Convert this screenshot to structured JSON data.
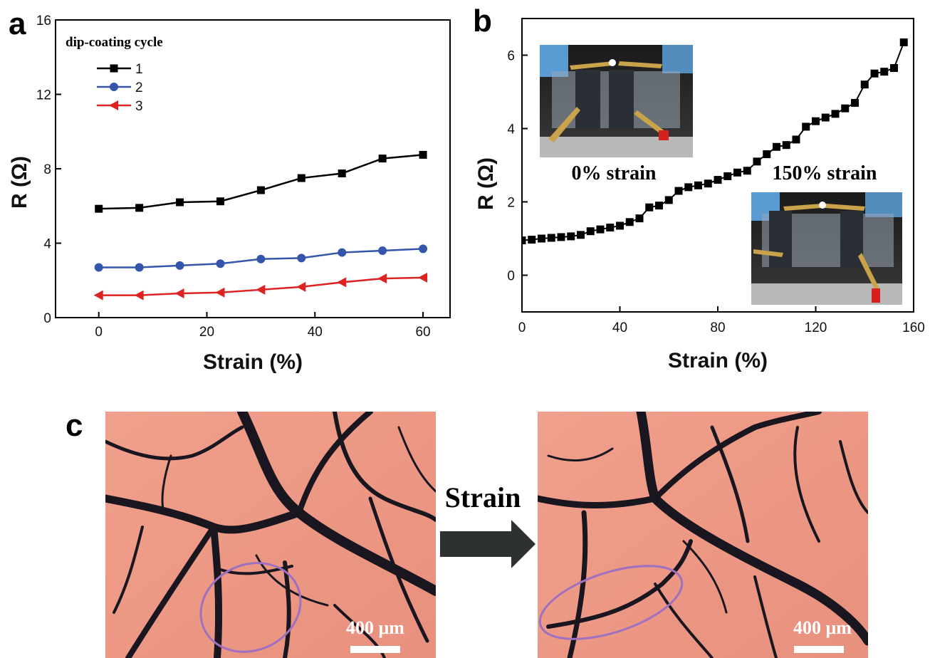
{
  "panels": {
    "a": "a",
    "b": "b",
    "c": "c"
  },
  "chart_data": [
    {
      "panel": "a",
      "type": "line",
      "xlabel": "Strain (%)",
      "ylabel": "R (Ω)",
      "xlim": [
        -8,
        65
      ],
      "ylim": [
        0,
        16
      ],
      "xticks": [
        0,
        20,
        40,
        60
      ],
      "yticks": [
        0,
        4,
        8,
        12,
        16
      ],
      "legend_title": "dip-coating cycle",
      "legend_position": "top-left",
      "x": [
        0,
        7.5,
        15,
        22.5,
        30,
        37.5,
        45,
        52.5,
        60
      ],
      "series": [
        {
          "name": "1",
          "color": "#000000",
          "marker": "square",
          "values": [
            5.85,
            5.9,
            6.2,
            6.25,
            6.85,
            7.5,
            7.75,
            8.55,
            8.75
          ]
        },
        {
          "name": "2",
          "color": "#3355aa",
          "marker": "circle",
          "values": [
            2.7,
            2.7,
            2.8,
            2.9,
            3.15,
            3.2,
            3.5,
            3.6,
            3.7
          ]
        },
        {
          "name": "3",
          "color": "#dd2222",
          "marker": "triangle-left",
          "values": [
            1.2,
            1.2,
            1.3,
            1.35,
            1.5,
            1.65,
            1.9,
            2.1,
            2.15
          ]
        }
      ]
    },
    {
      "panel": "b",
      "type": "line",
      "xlabel": "Strain (%)",
      "ylabel": "R (Ω)",
      "xlim": [
        0,
        160
      ],
      "ylim": [
        -1,
        7
      ],
      "xticks": [
        0,
        40,
        80,
        120,
        160
      ],
      "yticks": [
        0,
        2,
        4,
        6
      ],
      "series": [
        {
          "color": "#000000",
          "marker": "square",
          "x": [
            0,
            4,
            8,
            12,
            16,
            20,
            24,
            28,
            32,
            36,
            40,
            44,
            48,
            52,
            56,
            60,
            64,
            68,
            72,
            76,
            80,
            84,
            88,
            92,
            96,
            100,
            104,
            108,
            112,
            116,
            120,
            124,
            128,
            132,
            136,
            140,
            144,
            148,
            152,
            156
          ],
          "values": [
            0.95,
            0.97,
            1.0,
            1.02,
            1.04,
            1.06,
            1.1,
            1.2,
            1.25,
            1.3,
            1.35,
            1.45,
            1.55,
            1.85,
            1.9,
            2.05,
            2.3,
            2.4,
            2.45,
            2.5,
            2.6,
            2.7,
            2.8,
            2.85,
            3.1,
            3.3,
            3.5,
            3.55,
            3.7,
            4.05,
            4.2,
            4.3,
            4.4,
            4.55,
            4.7,
            5.2,
            5.5,
            5.55,
            5.65,
            6.35
          ]
        }
      ],
      "insets": [
        {
          "caption": "0% strain"
        },
        {
          "caption": "150% strain"
        }
      ]
    }
  ],
  "micrographs": {
    "arrow_label": "Strain",
    "scale_bar_label": "400 μm"
  }
}
